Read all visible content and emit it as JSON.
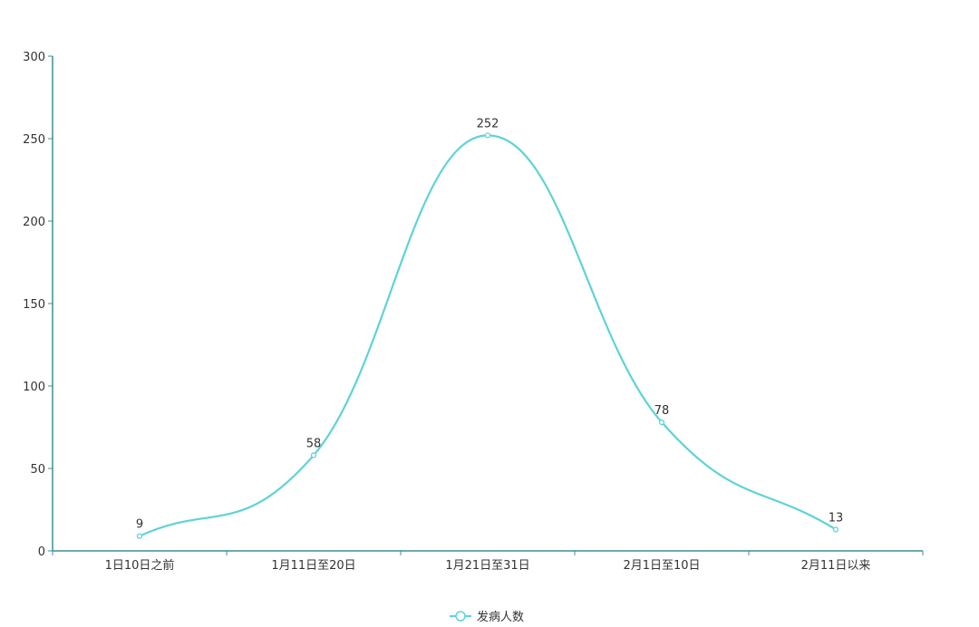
{
  "chart_data": {
    "type": "line",
    "smooth": true,
    "categories": [
      "1日10日之前",
      "1月11日至20日",
      "1月21日至31日",
      "2月1日至10日",
      "2月11日以来"
    ],
    "series": [
      {
        "name": "发病人数",
        "values": [
          9,
          58,
          252,
          78,
          13
        ],
        "color": "#5fd3d6"
      }
    ],
    "ylim": [
      0,
      300
    ],
    "yticks": [
      0,
      50,
      100,
      150,
      200,
      250,
      300
    ],
    "grid": false,
    "legend": "bottom-center",
    "axis_color": "#3d8f97",
    "data_labels": true
  }
}
